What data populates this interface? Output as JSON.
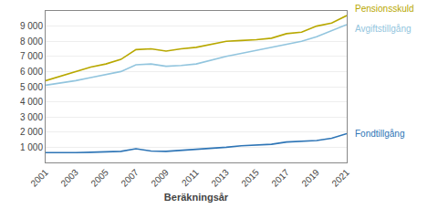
{
  "chart_data": {
    "type": "line",
    "x": [
      2001,
      2002,
      2003,
      2004,
      2005,
      2006,
      2007,
      2008,
      2009,
      2010,
      2011,
      2012,
      2013,
      2014,
      2015,
      2016,
      2017,
      2018,
      2019,
      2020,
      2021
    ],
    "series": [
      {
        "name": "Pensionsskuld",
        "color": "#b8a800",
        "values": [
          5400,
          5700,
          6000,
          6300,
          6500,
          6800,
          7450,
          7500,
          7350,
          7500,
          7600,
          7800,
          8000,
          8050,
          8100,
          8200,
          8500,
          8600,
          9000,
          9200,
          9700
        ]
      },
      {
        "name": "Avgiftstillgång",
        "color": "#92c5de",
        "values": [
          5100,
          5250,
          5400,
          5600,
          5800,
          6000,
          6450,
          6500,
          6350,
          6400,
          6500,
          6750,
          7000,
          7200,
          7400,
          7600,
          7800,
          8000,
          8300,
          8700,
          9100
        ]
      },
      {
        "name": "Fondtillgång",
        "color": "#2e75b6",
        "values": [
          650,
          640,
          650,
          670,
          700,
          730,
          900,
          750,
          730,
          800,
          850,
          900,
          1000,
          1100,
          1150,
          1200,
          1350,
          1400,
          1450,
          1600,
          1900
        ]
      }
    ],
    "x_label": "Beräkningsår",
    "xlim": [
      2001,
      2021
    ],
    "xticks": [
      2001,
      2003,
      2005,
      2007,
      2009,
      2011,
      2013,
      2015,
      2017,
      2019,
      2021
    ],
    "ylim": [
      0,
      10000
    ],
    "yticks": [
      {
        "value": 1000,
        "label": "1 000"
      },
      {
        "value": 2000,
        "label": "2 000"
      },
      {
        "value": 3000,
        "label": "3 000"
      },
      {
        "value": 4000,
        "label": "4 000"
      },
      {
        "value": 5000,
        "label": "5 000"
      },
      {
        "value": 6000,
        "label": "6 000"
      },
      {
        "value": 7000,
        "label": "7 000"
      },
      {
        "value": 8000,
        "label": "8 000"
      },
      {
        "value": 9000,
        "label": "9 000"
      }
    ],
    "grid": "y"
  }
}
